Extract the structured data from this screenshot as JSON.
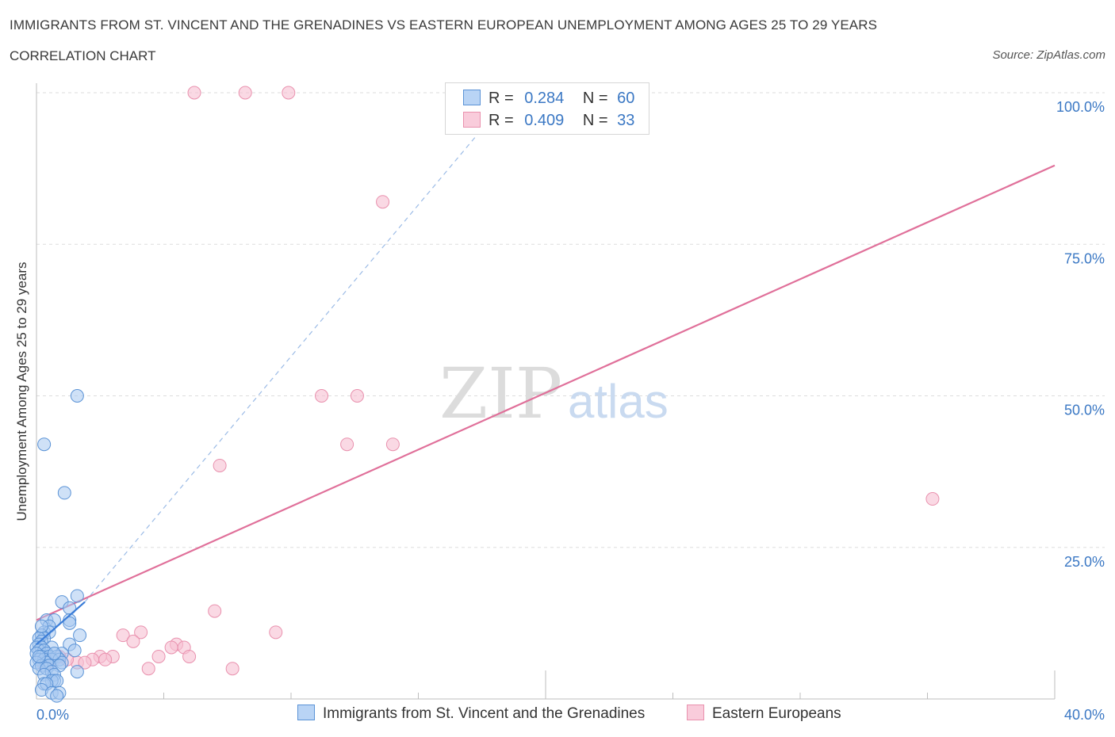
{
  "title": "IMMIGRANTS FROM ST. VINCENT AND THE GRENADINES VS EASTERN EUROPEAN UNEMPLOYMENT AMONG AGES 25 TO 29 YEARS",
  "subtitle": "CORRELATION CHART",
  "source": "Source: ZipAtlas.com",
  "watermark": {
    "zip": "ZIP",
    "atlas": "atlas"
  },
  "legend": {
    "r_label": "R =",
    "n_label": "N =",
    "series1": {
      "r": "0.284",
      "n": "60"
    },
    "series2": {
      "r": "0.409",
      "n": "33"
    }
  },
  "colors": {
    "blue_fill": "#a8c8f0",
    "blue_stroke": "#5b93d6",
    "blue_line": "#3b7dd8",
    "pink_fill": "#f7c0d2",
    "pink_stroke": "#e991ae",
    "pink_line": "#e0709a",
    "axis_label": "#3b78c4"
  },
  "chart_data": {
    "type": "scatter",
    "title": "IMMIGRANTS FROM ST. VINCENT AND THE GRENADINES VS EASTERN EUROPEAN UNEMPLOYMENT AMONG AGES 25 TO 29 YEARS",
    "xlabel": "",
    "ylabel": "Unemployment Among Ages 25 to 29 years",
    "xlim": [
      0,
      40
    ],
    "ylim": [
      0,
      100
    ],
    "x_tick_labels": [
      "0.0%",
      "40.0%"
    ],
    "y_ticks": [
      25,
      50,
      75,
      100
    ],
    "y_tick_labels": [
      "25.0%",
      "50.0%",
      "75.0%",
      "100.0%"
    ],
    "grid": true,
    "series": [
      {
        "name": "Immigrants from St. Vincent and the Grenadines",
        "r": 0.284,
        "n": 60,
        "trend_solid": {
          "x": [
            0.0,
            1.9
          ],
          "y": [
            9.0,
            16.0
          ]
        },
        "trend_dashed": {
          "x": [
            1.9,
            17.5
          ],
          "y": [
            16.0,
            94.0
          ]
        },
        "points": [
          [
            0.3,
            42.0
          ],
          [
            1.6,
            50.0
          ],
          [
            1.1,
            34.0
          ],
          [
            1.6,
            17.0
          ],
          [
            1.0,
            16.0
          ],
          [
            1.3,
            15.0
          ],
          [
            0.4,
            13.0
          ],
          [
            1.3,
            13.0
          ],
          [
            1.3,
            12.5
          ],
          [
            0.7,
            13.0
          ],
          [
            0.5,
            12.0
          ],
          [
            0.3,
            11.0
          ],
          [
            0.5,
            11.0
          ],
          [
            0.2,
            10.5
          ],
          [
            0.3,
            10.0
          ],
          [
            1.7,
            10.5
          ],
          [
            0.1,
            10.0
          ],
          [
            0.2,
            9.5
          ],
          [
            0.1,
            9.0
          ],
          [
            1.3,
            9.0
          ],
          [
            0.0,
            8.5
          ],
          [
            0.2,
            8.5
          ],
          [
            0.6,
            8.5
          ],
          [
            1.5,
            8.0
          ],
          [
            0.1,
            8.0
          ],
          [
            0.3,
            8.0
          ],
          [
            0.0,
            7.5
          ],
          [
            0.4,
            7.5
          ],
          [
            1.0,
            7.5
          ],
          [
            0.2,
            7.0
          ],
          [
            0.5,
            7.0
          ],
          [
            0.8,
            7.0
          ],
          [
            0.1,
            6.5
          ],
          [
            0.3,
            6.5
          ],
          [
            0.6,
            6.5
          ],
          [
            0.9,
            6.5
          ],
          [
            0.0,
            6.0
          ],
          [
            0.4,
            6.0
          ],
          [
            1.0,
            6.0
          ],
          [
            0.2,
            5.5
          ],
          [
            0.5,
            5.5
          ],
          [
            0.9,
            5.5
          ],
          [
            0.1,
            5.0
          ],
          [
            0.4,
            5.0
          ],
          [
            1.6,
            4.5
          ],
          [
            0.6,
            4.5
          ],
          [
            0.7,
            4.0
          ],
          [
            0.3,
            4.0
          ],
          [
            0.7,
            3.0
          ],
          [
            0.6,
            3.0
          ],
          [
            0.8,
            3.0
          ],
          [
            0.3,
            2.5
          ],
          [
            0.4,
            2.5
          ],
          [
            0.2,
            1.5
          ],
          [
            0.6,
            1.0
          ],
          [
            0.9,
            1.0
          ],
          [
            0.8,
            0.5
          ],
          [
            0.1,
            7.0
          ],
          [
            0.7,
            7.5
          ],
          [
            0.2,
            12.0
          ]
        ]
      },
      {
        "name": "Eastern Europeans",
        "r": 0.409,
        "n": 33,
        "trend": {
          "x": [
            0.0,
            40.0
          ],
          "y": [
            13.0,
            88.0
          ]
        },
        "points": [
          [
            6.2,
            100.0
          ],
          [
            8.2,
            100.0
          ],
          [
            9.9,
            100.0
          ],
          [
            13.6,
            82.0
          ],
          [
            11.2,
            50.0
          ],
          [
            12.6,
            50.0
          ],
          [
            12.2,
            42.0
          ],
          [
            14.0,
            42.0
          ],
          [
            7.2,
            38.5
          ],
          [
            35.2,
            33.0
          ],
          [
            7.0,
            14.5
          ],
          [
            9.4,
            11.0
          ],
          [
            4.1,
            11.0
          ],
          [
            3.4,
            10.5
          ],
          [
            3.8,
            9.5
          ],
          [
            5.5,
            9.0
          ],
          [
            5.3,
            8.5
          ],
          [
            5.8,
            8.5
          ],
          [
            4.8,
            7.0
          ],
          [
            3.0,
            7.0
          ],
          [
            2.5,
            7.0
          ],
          [
            2.2,
            6.5
          ],
          [
            2.7,
            6.5
          ],
          [
            1.6,
            6.0
          ],
          [
            1.2,
            6.5
          ],
          [
            1.9,
            6.0
          ],
          [
            0.7,
            6.5
          ],
          [
            0.5,
            6.0
          ],
          [
            0.3,
            5.5
          ],
          [
            0.9,
            7.0
          ],
          [
            6.0,
            7.0
          ],
          [
            4.4,
            5.0
          ],
          [
            7.7,
            5.0
          ]
        ]
      }
    ]
  }
}
